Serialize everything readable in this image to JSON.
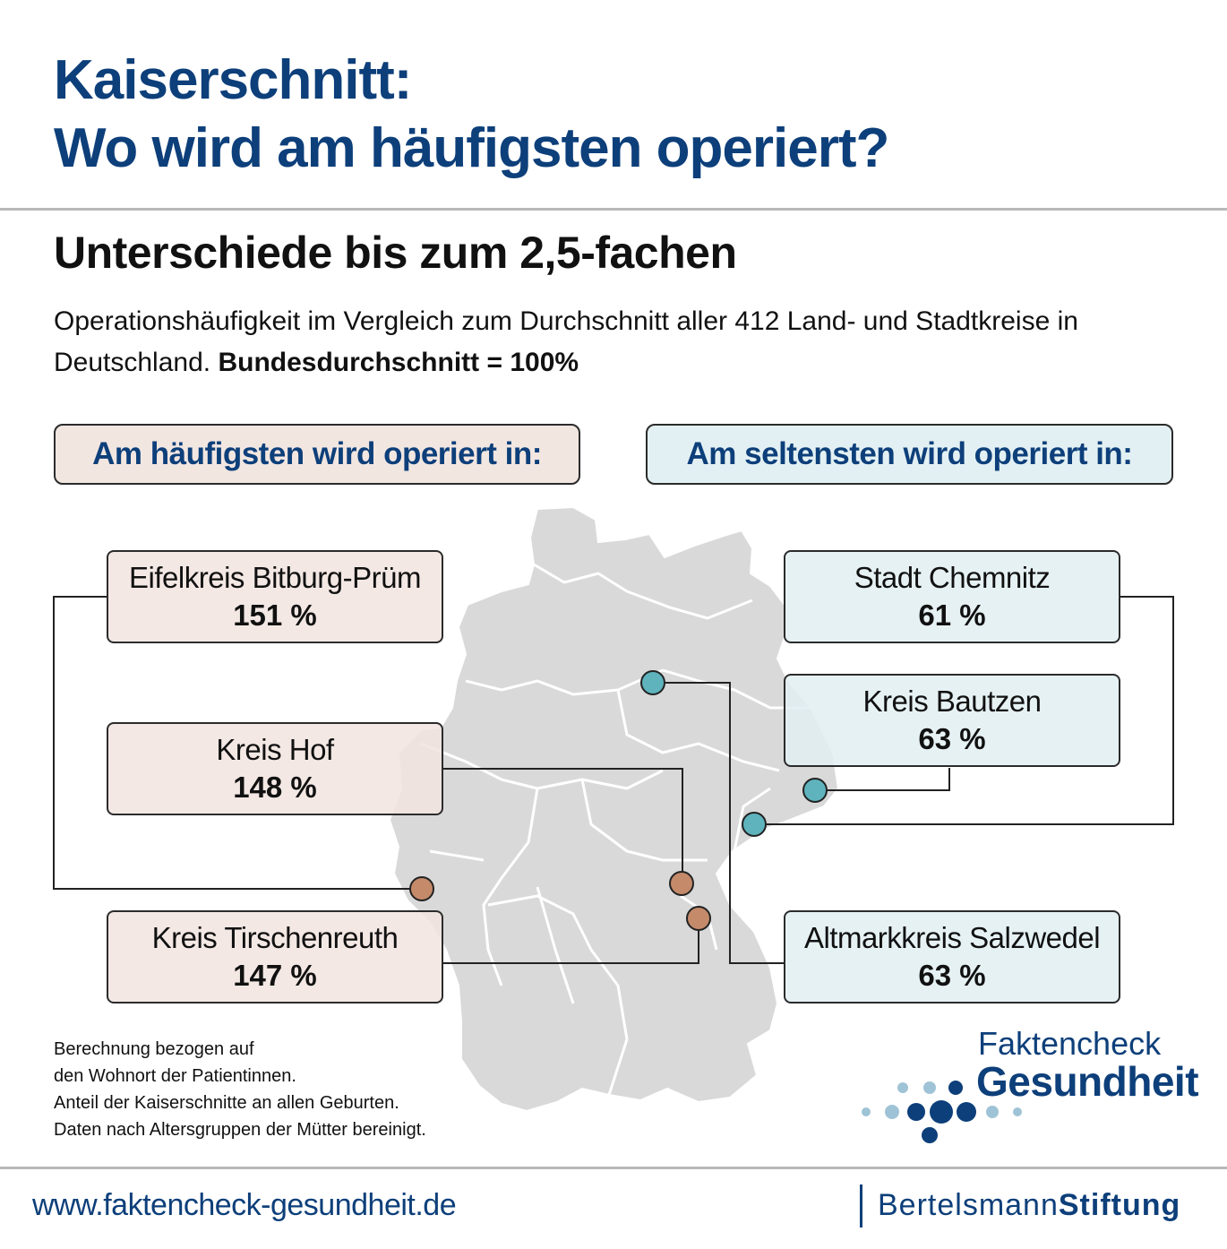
{
  "title_line1": "Kaiserschnitt:",
  "title_line2": "Wo wird am häufigsten operiert?",
  "subtitle": "Unterschiede bis zum 2,5-fachen",
  "description": "Operationshäufigkeit im Vergleich zum Durchschnitt aller 412 Land- und Stadtkreise in Deutschland.",
  "description_bold": "Bundesdurchschnitt = 100%",
  "header_high": "Am häufigsten wird operiert in:",
  "header_low": "Am seltensten wird operiert in:",
  "highest": [
    {
      "name": "Eifelkreis Bitburg-Prüm",
      "value": "151 %"
    },
    {
      "name": "Kreis Hof",
      "value": "148 %"
    },
    {
      "name": "Kreis Tirschenreuth",
      "value": "147 %"
    }
  ],
  "lowest": [
    {
      "name": "Stadt Chemnitz",
      "value": "61 %"
    },
    {
      "name": "Kreis Bautzen",
      "value": "63 %"
    },
    {
      "name": "Altmarkkreis Salzwedel",
      "value": "63 %"
    }
  ],
  "footnote": [
    "Berechnung bezogen auf",
    "den Wohnort der Patientinnen.",
    "Anteil der Kaiserschnitte an allen Geburten.",
    "Daten nach Altersgruppen der Mütter bereinigt."
  ],
  "url": "www.faktencheck-gesundheit.de",
  "logo_faktencheck_line1": "Faktencheck",
  "logo_faktencheck_line2": "Gesundheit",
  "logo_bertelsmann_part1": "Bertelsmann",
  "logo_bertelsmann_part2": "Stiftung",
  "colors": {
    "title_blue": "#0d3f7a",
    "high_fill": "#f1e4df",
    "low_fill": "#e2eff2",
    "high_marker": "#c48a6a",
    "low_marker": "#5fb3bd",
    "map_gray": "#d9d9d9"
  }
}
